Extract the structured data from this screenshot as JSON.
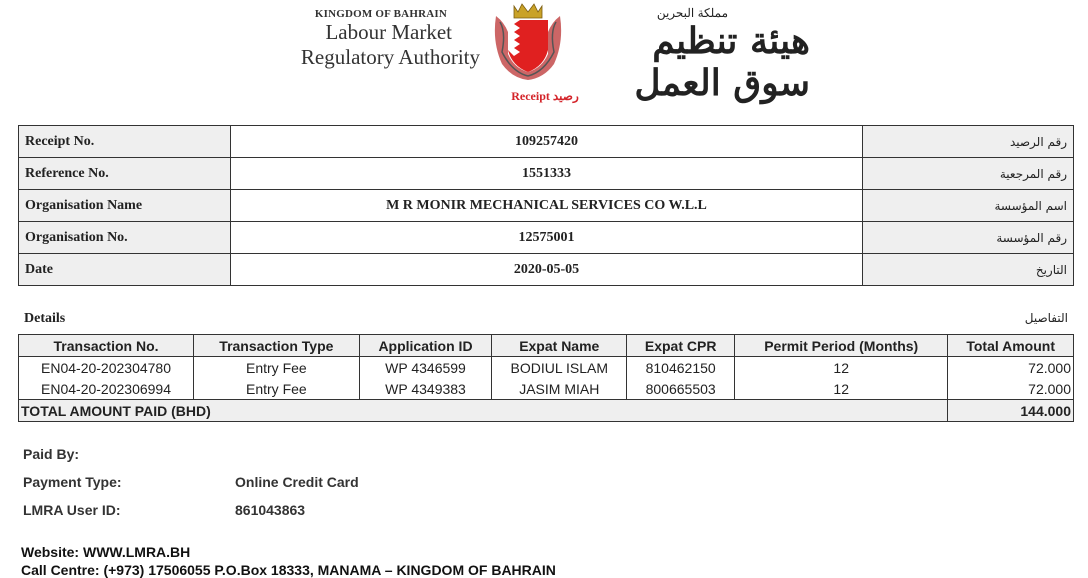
{
  "header": {
    "kingdom": "KINGDOM OF BAHRAIN",
    "org_line1": "Labour Market",
    "org_line2": "Regulatory Authority",
    "ar_kingdom": "مملكة البحرين",
    "ar_org": "هيئة تنظيم سوق العمل",
    "receipt_title": "Receipt رصيد",
    "colors": {
      "accent": "#d4242a",
      "label_bg": "#efefef"
    }
  },
  "summary": [
    {
      "label": "Receipt No.",
      "value": "109257420",
      "ar": "رقم الرصيد"
    },
    {
      "label": "Reference No.",
      "value": "1551333",
      "ar": "رقم المرجعية"
    },
    {
      "label": "Organisation Name",
      "value": "M R MONIR MECHANICAL SERVICES CO W.L.L",
      "ar": "اسم المؤسسة"
    },
    {
      "label": "Organisation No.",
      "value": "12575001",
      "ar": "رقم المؤسسة"
    },
    {
      "label": "Date",
      "value": "2020-05-05",
      "ar": "التاريخ"
    }
  ],
  "details": {
    "title": "Details",
    "title_ar": "التفاصيل",
    "columns": [
      "Transaction No.",
      "Transaction Type",
      "Application ID",
      "Expat Name",
      "Expat CPR",
      "Permit Period (Months)",
      "Total Amount"
    ],
    "rows": [
      [
        "EN04-20-202304780",
        "Entry Fee",
        "WP 4346599",
        "BODIUL ISLAM",
        "810462150",
        "12",
        "72.000"
      ],
      [
        "EN04-20-202306994",
        "Entry Fee",
        "WP 4349383",
        "JASIM MIAH",
        "800665503",
        "12",
        "72.000"
      ]
    ],
    "total_label": "TOTAL AMOUNT PAID (BHD)",
    "total_value": "144.000"
  },
  "payment": {
    "paid_by_label": "Paid By:",
    "payment_type_label": "Payment Type:",
    "payment_type": "Online Credit Card",
    "user_id_label": "LMRA User ID:",
    "user_id": "861043863"
  },
  "footer": {
    "website": "Website: WWW.LMRA.BH",
    "call_centre": "Call Centre: (+973) 17506055 P.O.Box 18333, MANAMA – KINGDOM OF BAHRAIN"
  }
}
